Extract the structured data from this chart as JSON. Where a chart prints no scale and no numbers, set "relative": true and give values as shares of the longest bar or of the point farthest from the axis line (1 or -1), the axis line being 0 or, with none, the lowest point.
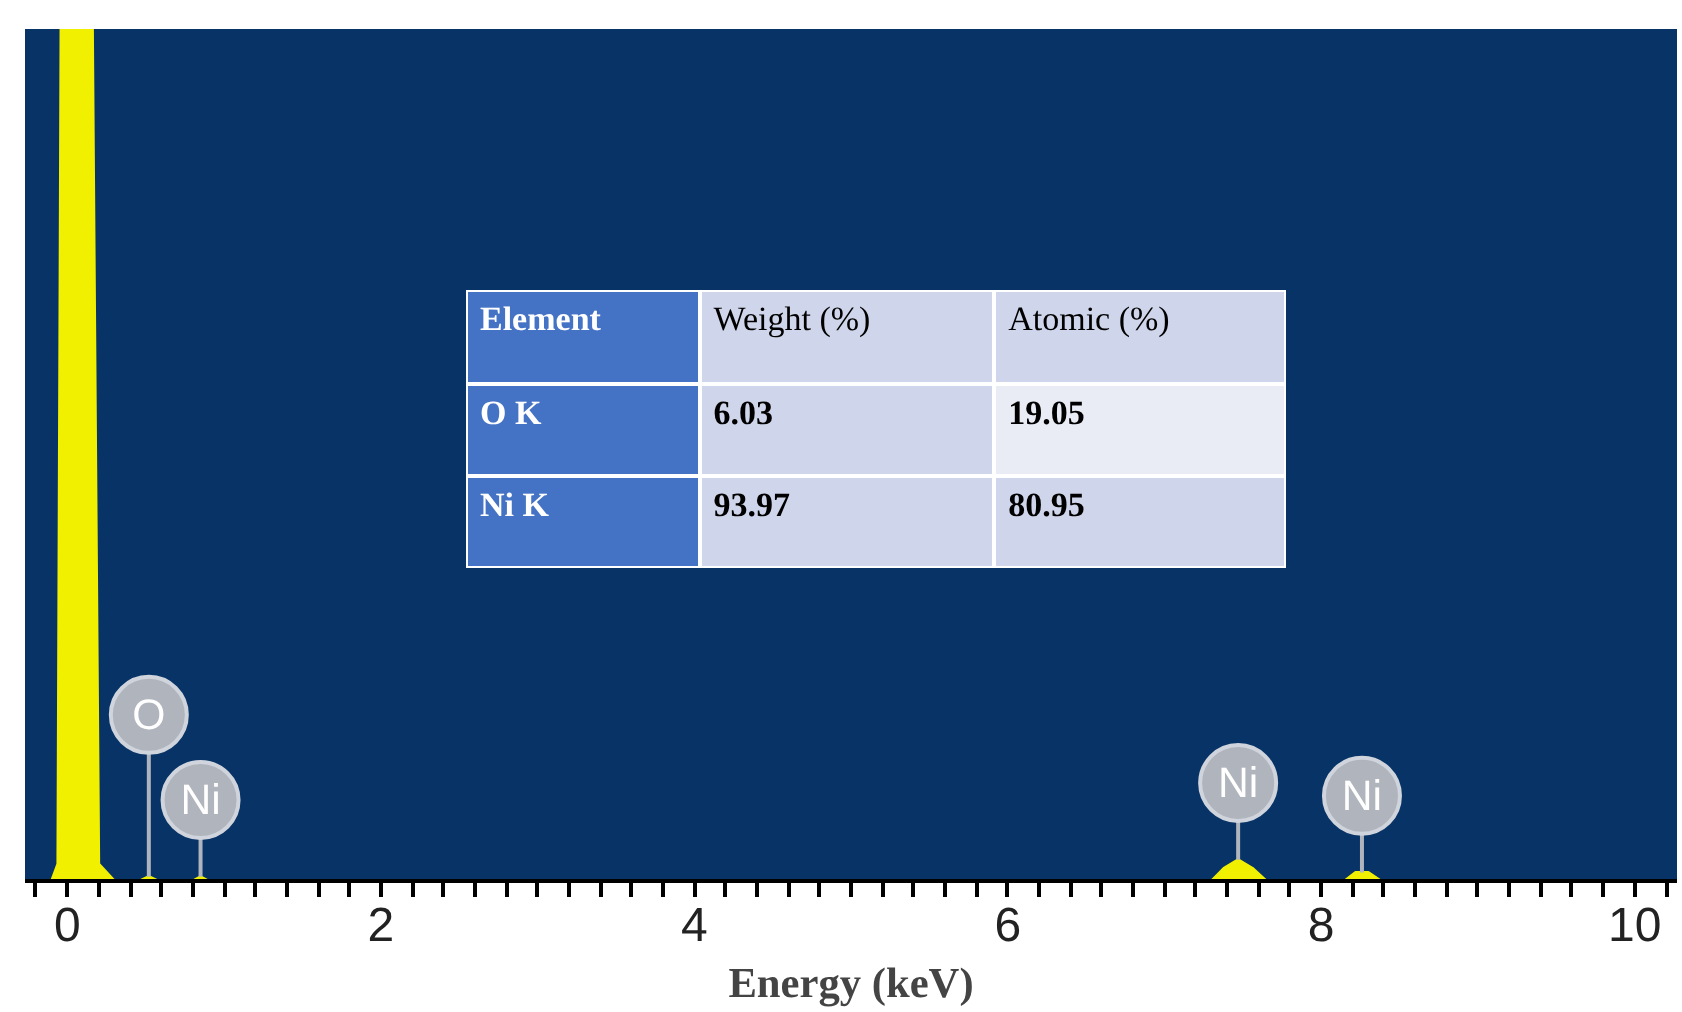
{
  "chart_data": {
    "type": "area",
    "relative": true,
    "xlabel": "Energy (keV)",
    "color": "#f0f000",
    "x": [
      -0.1,
      -0.06,
      -0.04,
      0.16,
      0.2,
      0.3,
      0.46,
      0.52,
      0.58,
      0.8,
      0.85,
      0.9,
      7.3,
      7.38,
      7.47,
      7.56,
      7.65,
      8.15,
      8.22,
      8.3,
      8.38,
      10.2
    ],
    "values": [
      0,
      0.02,
      1,
      1,
      0.02,
      0,
      0,
      0.005,
      0,
      0,
      0.005,
      0,
      0,
      0.015,
      0.025,
      0.015,
      0,
      0,
      0.01,
      0.01,
      0,
      0
    ],
    "xlim": [
      -0.27,
      10.27
    ],
    "xticks": [
      {
        "value": -0.2,
        "label": null
      },
      0,
      {
        "value": 0.2,
        "label": null
      },
      {
        "value": 0.4,
        "label": null
      },
      {
        "value": 0.6,
        "label": null
      },
      {
        "value": 0.8,
        "label": null
      },
      {
        "value": 1,
        "label": null
      },
      {
        "value": 1.2,
        "label": null
      },
      {
        "value": 1.4,
        "label": null
      },
      {
        "value": 1.6,
        "label": null
      },
      {
        "value": 1.8,
        "label": null
      },
      2,
      {
        "value": 2.2,
        "label": null
      },
      {
        "value": 2.4,
        "label": null
      },
      {
        "value": 2.6,
        "label": null
      },
      {
        "value": 2.8,
        "label": null
      },
      {
        "value": 3,
        "label": null
      },
      {
        "value": 3.2,
        "label": null
      },
      {
        "value": 3.4,
        "label": null
      },
      {
        "value": 3.6,
        "label": null
      },
      {
        "value": 3.8,
        "label": null
      },
      4,
      {
        "value": 4.2,
        "label": null
      },
      {
        "value": 4.4,
        "label": null
      },
      {
        "value": 4.6,
        "label": null
      },
      {
        "value": 4.8,
        "label": null
      },
      {
        "value": 5,
        "label": null
      },
      {
        "value": 5.2,
        "label": null
      },
      {
        "value": 5.4,
        "label": null
      },
      {
        "value": 5.6,
        "label": null
      },
      {
        "value": 5.8,
        "label": null
      },
      6,
      {
        "value": 6.2,
        "label": null
      },
      {
        "value": 6.4,
        "label": null
      },
      {
        "value": 6.6,
        "label": null
      },
      {
        "value": 6.8,
        "label": null
      },
      {
        "value": 7,
        "label": null
      },
      {
        "value": 7.2,
        "label": null
      },
      {
        "value": 7.4,
        "label": null
      },
      {
        "value": 7.6,
        "label": null
      },
      {
        "value": 7.8,
        "label": null
      },
      8,
      {
        "value": 8.2,
        "label": null
      },
      {
        "value": 8.4,
        "label": null
      },
      {
        "value": 8.6,
        "label": null
      },
      {
        "value": 8.8,
        "label": null
      },
      {
        "value": 9,
        "label": null
      },
      {
        "value": 9.2,
        "label": null
      },
      {
        "value": 9.4,
        "label": null
      },
      {
        "value": 9.6,
        "label": null
      },
      {
        "value": 9.8,
        "label": null
      },
      10,
      {
        "value": 10.2,
        "label": null
      }
    ],
    "annotations": [
      "Element",
      "Weight (%)",
      "Atomic (%)",
      "O K",
      "6.03",
      "19.05",
      "Ni K",
      "93.97",
      "80.95",
      {
        "text": "O",
        "x": 0.52,
        "y": 0.005
      },
      {
        "text": "Ni",
        "x": 0.85,
        "y": 0.005
      },
      {
        "text": "Ni",
        "x": 7.47,
        "y": 0.025
      },
      {
        "text": "Ni",
        "x": 8.26,
        "y": 0.01
      }
    ]
  }
}
